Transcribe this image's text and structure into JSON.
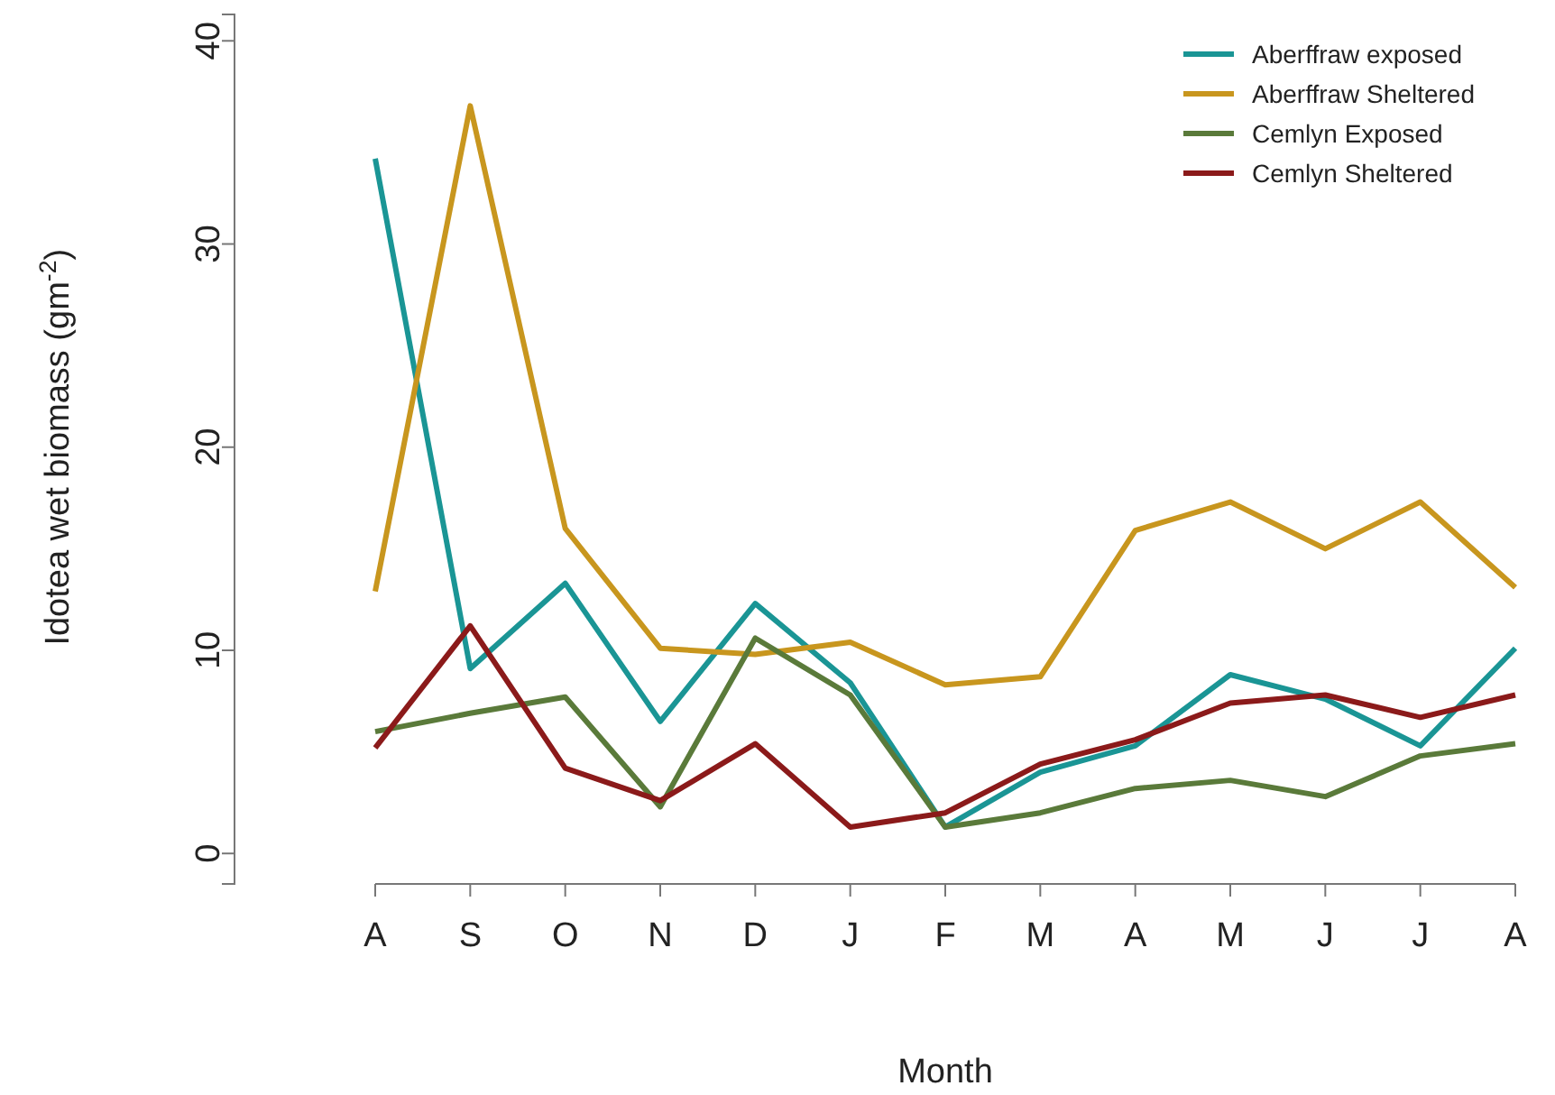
{
  "chart_data": {
    "type": "line",
    "xlabel": "Month",
    "ylabel": "Idotea wet biomass (gm$^{-2}$)",
    "categories": [
      "A",
      "S",
      "O",
      "N",
      "D",
      "J",
      "F",
      "M",
      "A",
      "M",
      "J",
      "J",
      "A"
    ],
    "ylim": [
      -1.5,
      41.3
    ],
    "yticks": [
      0,
      10,
      20,
      30,
      40
    ],
    "grid": false,
    "legend": "top right",
    "line_style": "solid",
    "marker": "none",
    "series": [
      {
        "name": "Aberffraw exposed",
        "color": "#1a9595",
        "values": [
          34.2,
          9.1,
          13.3,
          6.5,
          12.3,
          8.4,
          1.3,
          4.0,
          5.3,
          8.8,
          7.6,
          5.3,
          10.1
        ]
      },
      {
        "name": "Aberffraw Sheltered",
        "color": "#c8961e",
        "values": [
          12.9,
          36.8,
          16.0,
          10.1,
          9.8,
          10.4,
          8.3,
          8.7,
          15.9,
          17.3,
          15.0,
          17.3,
          13.1
        ]
      },
      {
        "name": "Cemlyn Exposed",
        "color": "#5a7a3a",
        "values": [
          6.0,
          6.9,
          7.7,
          2.3,
          10.6,
          7.8,
          1.3,
          2.0,
          3.2,
          3.6,
          2.8,
          4.8,
          5.4
        ]
      },
      {
        "name": "Cemlyn Sheltered",
        "color": "#8b1a1a",
        "values": [
          5.2,
          11.2,
          4.2,
          2.6,
          5.4,
          1.3,
          2.0,
          4.4,
          5.6,
          7.4,
          7.8,
          6.7,
          7.8
        ]
      }
    ]
  }
}
